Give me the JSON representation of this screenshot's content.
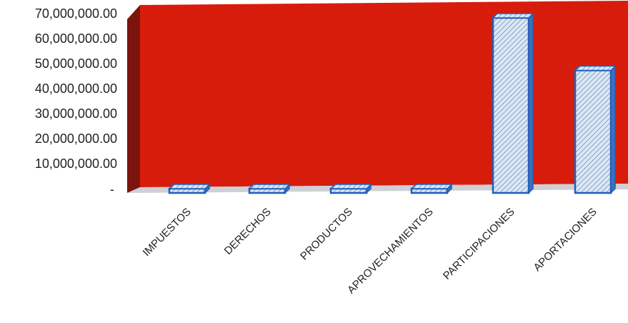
{
  "chart_data": {
    "type": "bar",
    "style": "3d-column",
    "categories": [
      "IMPUESTOS",
      "DERECHOS",
      "PRODUCTOS",
      "APROVECHAMIENTOS",
      "PARTICIPACIONES",
      "APORTACIONES"
    ],
    "values": [
      1000000,
      1000000,
      400000,
      400000,
      70000000,
      49000000
    ],
    "ylim": [
      0,
      70000000
    ],
    "y_ticks": [
      {
        "value": 70000000,
        "label": "70,000,000.00"
      },
      {
        "value": 60000000,
        "label": "60,000,000.00"
      },
      {
        "value": 50000000,
        "label": "50,000,000.00"
      },
      {
        "value": 40000000,
        "label": "40,000,000.00"
      },
      {
        "value": 30000000,
        "label": "30,000,000.00"
      },
      {
        "value": 20000000,
        "label": "20,000,000.00"
      },
      {
        "value": 10000000,
        "label": "10,000,000.00"
      },
      {
        "value": 0,
        "label": "-"
      }
    ],
    "title": "",
    "xlabel": "",
    "ylabel": "",
    "grid": false,
    "legend": "none",
    "colors": {
      "back_wall": "#d81c0c",
      "side_wall": "#7a140c",
      "floor": "#cfcfd6",
      "bar_fill": "#dde8f4",
      "bar_stroke": "#1f5fb8",
      "bar_hatch": "#6d8fc0"
    }
  }
}
